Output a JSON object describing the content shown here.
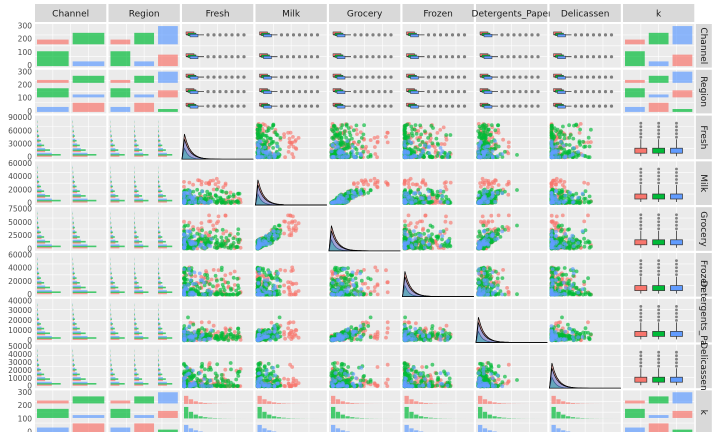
{
  "chart_data": {
    "type": "scatter",
    "variables": [
      "Channel",
      "Region",
      "Fresh",
      "Milk",
      "Grocery",
      "Frozen",
      "Detergents_Paper",
      "Delicassen",
      "k"
    ],
    "strip_labels": [
      "Channel",
      "Region",
      "Fresh",
      "Milk",
      "Grocery",
      "Frozen",
      "Detergents_Paper",
      "Delicassen",
      "k"
    ],
    "clusters": [
      "1",
      "2",
      "3"
    ],
    "colors": {
      "1": "#F8766D",
      "2": "#00BA38",
      "3": "#619CFF",
      "panel_bg": "#EBEBEB",
      "strip_bg": "#D9D9D9"
    },
    "correlations": [
      {
        "row": "Milk",
        "col": "Fresh",
        "cor": "Cor : 0.101",
        "groups": [
          "1: 0.241",
          "2: 0.296",
          "3: 0.044"
        ]
      },
      {
        "row": "Grocery",
        "col": "Fresh",
        "cor": "Cor : -0.0119",
        "groups": [
          "1: 0.0926",
          "2: 0.282",
          "3: 0.0556"
        ]
      },
      {
        "row": "Frozen",
        "col": "Fresh",
        "cor": "Cor : 0.346",
        "groups": [
          "1: 0.294",
          "2: 0.363",
          "3: 0.149"
        ]
      },
      {
        "row": "Detergents_Paper",
        "col": "Fresh",
        "cor": "Cor : -0.102",
        "groups": [
          "1: 0.0273",
          "2: 0.0422",
          "3: -0.152"
        ]
      },
      {
        "row": "Delicassen",
        "col": "Fresh",
        "cor": "Cor : 0.245",
        "groups": [
          "1: 0.28",
          "2: 0.25",
          "3: 0.381"
        ]
      },
      {
        "row": "Grocery",
        "col": "Milk",
        "cor": "Cor : 0.728",
        "groups": [
          "1: 0.655",
          "2: 0.595",
          "3: 0.63"
        ]
      },
      {
        "row": "Frozen",
        "col": "Milk",
        "cor": "Cor : 0.124",
        "groups": [
          "1: 0.217",
          "2: 0.467",
          "3: 0.102"
        ]
      },
      {
        "row": "Detergents_Paper",
        "col": "Milk",
        "cor": "Cor : 0.662",
        "groups": [
          "1: 0.618",
          "2: 0.235",
          "3: 0.309"
        ]
      },
      {
        "row": "Delicassen",
        "col": "Milk",
        "cor": "Cor : 0.406",
        "groups": [
          "1: 0.344",
          "2: 0.67",
          "3: 0.528"
        ]
      },
      {
        "row": "Frozen",
        "col": "Grocery",
        "cor": "Cor : -0.0402",
        "groups": [
          "1: 0.0889",
          "2: 0.29",
          "3: 0.104"
        ]
      },
      {
        "row": "Detergents_Paper",
        "col": "Grocery",
        "cor": "Cor : 0.925",
        "groups": [
          "1: 0.923",
          "2: 0.591",
          "3: 0.446"
        ]
      },
      {
        "row": "Delicassen",
        "col": "Grocery",
        "cor": "Cor : 0.205",
        "groups": [
          "1: 0.159",
          "2: 0.476",
          "3: 0.399"
        ]
      },
      {
        "row": "Detergents_Paper",
        "col": "Frozen",
        "cor": "Cor : -0.132",
        "groups": [
          "1: 0.0652",
          "2: 0.00927",
          "3: -0.139"
        ]
      },
      {
        "row": "Delicassen",
        "col": "Frozen",
        "cor": "Cor : 0.391",
        "groups": [
          "1: 0.337",
          "2: 0.44",
          "3: 0.316"
        ]
      },
      {
        "row": "Delicassen",
        "col": "Detergents_Paper",
        "cor": "Cor : 0.0693",
        "groups": [
          "1: 0.0664",
          "2: 0.0901",
          "3: 0.0473"
        ]
      }
    ],
    "x_ticks": {
      "Channel": [
        "1",
        "2"
      ],
      "Region": [
        "1",
        "2",
        "3"
      ],
      "Fresh": [
        "0",
        "30000",
        "60000",
        "90000"
      ],
      "Milk": [
        "0",
        "20000",
        "40000",
        "60000"
      ],
      "Grocery": [
        "0",
        "25000",
        "50000",
        "75000"
      ],
      "Frozen": [
        "0",
        "20000",
        "40000",
        "60000"
      ],
      "Detergents_Paper": [
        "0",
        "10000",
        "20000",
        "30000",
        "40000"
      ],
      "Delicassen": [
        "0",
        "10000",
        "20000",
        "30000",
        "40000",
        "50000"
      ],
      "k": [
        "1",
        "2",
        "3"
      ]
    },
    "y_ticks": {
      "Channel": [
        "0",
        "100",
        "200",
        "300"
      ],
      "Region": [
        "0",
        "100",
        "200",
        "300"
      ],
      "Fresh": [
        "0",
        "30000",
        "60000",
        "90000"
      ],
      "Milk": [
        "0",
        "20000",
        "40000",
        "60000"
      ],
      "Grocery": [
        "0",
        "25000",
        "50000",
        "75000"
      ],
      "Frozen": [
        "0",
        "20000",
        "40000",
        "60000"
      ],
      "Detergents_Paper": [
        "0",
        "10000",
        "20000",
        "30000",
        "40000"
      ],
      "Delicassen": [
        "0",
        "10000",
        "20000",
        "30000",
        "40000",
        "50000"
      ],
      "k": [
        "0",
        "100",
        "200",
        "300"
      ]
    },
    "ranges": {
      "Fresh": [
        0,
        115000
      ],
      "Milk": [
        0,
        76000
      ],
      "Grocery": [
        0,
        95000
      ],
      "Frozen": [
        0,
        63000
      ],
      "Detergents_Paper": [
        0,
        42000
      ],
      "Delicassen": [
        0,
        49000
      ]
    },
    "k_counts": [
      {
        "cluster": "1",
        "count": 130
      },
      {
        "cluster": "2",
        "count": 250
      },
      {
        "cluster": "3",
        "count": 60
      }
    ]
  }
}
